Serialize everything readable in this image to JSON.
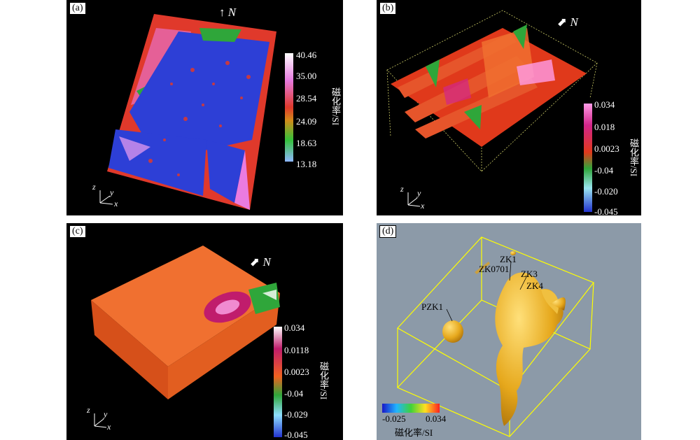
{
  "panels": {
    "a": {
      "label": "(a)",
      "north": "N",
      "ticks": [
        "40.46",
        "35.00",
        "28.54",
        "24.09",
        "18.63",
        "13.18"
      ],
      "unit": "磁化率/SI"
    },
    "b": {
      "label": "(b)",
      "north": "N",
      "ticks": [
        "0.034",
        "0.018",
        "0.0023",
        "-0.04",
        "-0.020",
        "-0.045"
      ],
      "unit": "磁化率/SI"
    },
    "c": {
      "label": "(c)",
      "north": "N",
      "ticks": [
        "0.034",
        "0.0118",
        "0.0023",
        "-0.04",
        "-0.029",
        "-0.045"
      ],
      "unit": "磁化率/SI"
    },
    "d": {
      "label": "(d)",
      "boreholes": [
        "ZK1",
        "ZK0701",
        "ZK3",
        "ZK4",
        "PZK1"
      ],
      "colorbar": {
        "min": "-0.025",
        "max": "0.034",
        "unit": "磁化率/SI"
      }
    }
  },
  "axes": {
    "z": "z",
    "y": "y",
    "x": "x"
  },
  "colors": {
    "panel_bg": "#000000",
    "panel_d_bg": "#8c9aa8",
    "box_yellow": "#ffff00",
    "body_gold": "#e6a81c"
  }
}
